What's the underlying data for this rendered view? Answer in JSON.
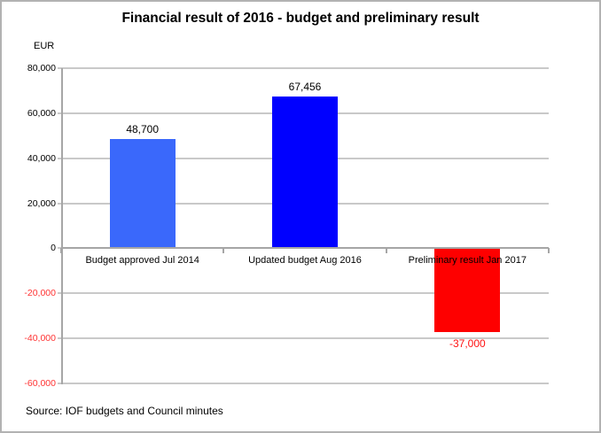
{
  "chart_data": {
    "type": "bar",
    "title": "Financial result of 2016 - budget and preliminary result",
    "unit_label": "EUR",
    "categories": [
      "Budget approved Jul 2014",
      "Updated budget Aug 2016",
      "Preliminary result Jan 2017"
    ],
    "values": [
      48700,
      67456,
      -37000
    ],
    "value_labels": [
      "48,700",
      "67,456",
      "-37,000"
    ],
    "bar_colors": [
      "#3A68FB",
      "#0000FF",
      "#FE0000"
    ],
    "value_label_colors": [
      "#000000",
      "#000000",
      "#FF1111"
    ],
    "ylim": [
      -60000,
      80000
    ],
    "ytick_interval": 20000,
    "yticks": [
      {
        "value": 80000,
        "label": "80,000",
        "color": "#000000"
      },
      {
        "value": 60000,
        "label": "60,000",
        "color": "#000000"
      },
      {
        "value": 40000,
        "label": "40,000",
        "color": "#000000"
      },
      {
        "value": 20000,
        "label": "20,000",
        "color": "#000000"
      },
      {
        "value": 0,
        "label": "0",
        "color": "#000000"
      },
      {
        "value": -20000,
        "label": "-20,000",
        "color": "#FF3333"
      },
      {
        "value": -40000,
        "label": "-40,000",
        "color": "#FF3333"
      },
      {
        "value": -60000,
        "label": "-60,000",
        "color": "#FF3333"
      }
    ],
    "grid": true,
    "legend": "none",
    "xlabel": "",
    "ylabel": "EUR",
    "source": "Source: IOF budgets and Council minutes"
  }
}
